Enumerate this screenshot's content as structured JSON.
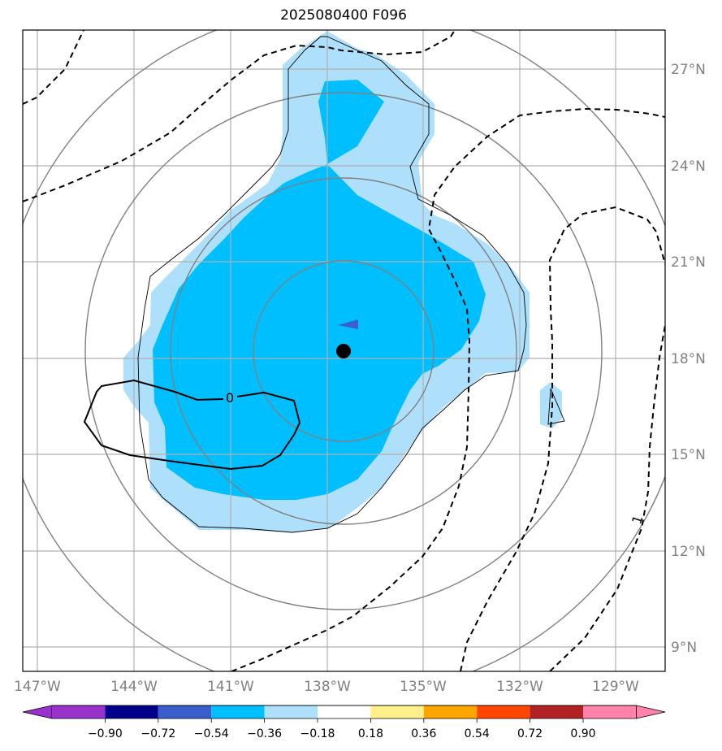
{
  "title": "2025080400 F096",
  "map": {
    "lon_labels": [
      "147°W",
      "144°W",
      "141°W",
      "138°W",
      "135°W",
      "132°W",
      "129°W"
    ],
    "lat_labels": [
      "27°N",
      "24°N",
      "21°N",
      "18°N",
      "15°N",
      "12°N",
      "9°N"
    ],
    "contour_labels": [
      "0",
      "1"
    ],
    "center_marker": {
      "lon": -137.5,
      "lat": 18.2,
      "color": "#000000"
    },
    "colors": {
      "light_blue": "#aee0fb",
      "cyan": "#00bfff",
      "royal_blue": "#3a5fcd",
      "contour": "#000000",
      "range_rings": "#808080",
      "gridlines": "#b0b0b0"
    }
  },
  "colorbar": {
    "ticks": [
      "−0.90",
      "−0.72",
      "−0.54",
      "−0.36",
      "−0.18",
      "0.18",
      "0.36",
      "0.54",
      "0.72",
      "0.90"
    ],
    "colors": [
      "#9932cc",
      "#00008b",
      "#3a5fcd",
      "#00bfff",
      "#aee0fb",
      "#ffffff",
      "#fff08c",
      "#ffa500",
      "#ff4500",
      "#b22222",
      "#ff82ab",
      "#ff82ab"
    ]
  }
}
